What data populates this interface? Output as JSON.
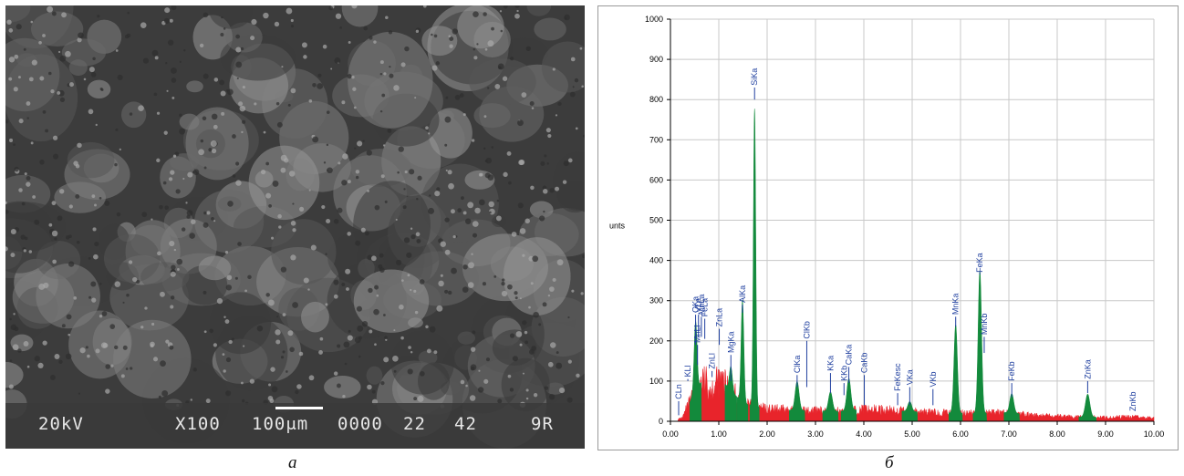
{
  "micrograph": {
    "voltage": "20kV",
    "magnification": "X100",
    "scale_label": "100μm",
    "image_code": "0000",
    "number_a": "22",
    "number_b": "42",
    "corner_code": "9R",
    "texture_colors": [
      "#555555",
      "#6a6a6a",
      "#808080",
      "#959595",
      "#3a3a3a"
    ]
  },
  "captions": {
    "left": "a",
    "right": "б"
  },
  "chart_data": {
    "type": "area",
    "ylabel": "unts",
    "xlim": [
      0,
      10
    ],
    "ylim": [
      0,
      1000
    ],
    "xticks": [
      "0.00",
      "1.00",
      "2.00",
      "3.00",
      "4.00",
      "5.00",
      "6.00",
      "7.00",
      "8.00",
      "9.00",
      "10.00"
    ],
    "yticks": [
      "0",
      "100",
      "200",
      "300",
      "400",
      "500",
      "600",
      "700",
      "800",
      "900",
      "1000"
    ],
    "grid": true,
    "background_color": "#e8242b",
    "peak_color": "#138a3c",
    "label_color": "#1f3f9f",
    "background_points": [
      [
        0.15,
        4
      ],
      [
        0.25,
        10
      ],
      [
        0.35,
        35
      ],
      [
        0.45,
        60
      ],
      [
        0.55,
        80
      ],
      [
        0.65,
        100
      ],
      [
        0.75,
        95
      ],
      [
        0.85,
        80
      ],
      [
        0.95,
        95
      ],
      [
        1.05,
        100
      ],
      [
        1.15,
        90
      ],
      [
        1.3,
        70
      ],
      [
        1.5,
        45
      ],
      [
        1.8,
        35
      ],
      [
        2.0,
        30
      ],
      [
        2.5,
        28
      ],
      [
        3.0,
        26
      ],
      [
        3.5,
        25
      ],
      [
        4.0,
        30
      ],
      [
        4.5,
        28
      ],
      [
        5.0,
        24
      ],
      [
        5.5,
        22
      ],
      [
        6.0,
        20
      ],
      [
        6.5,
        20
      ],
      [
        7.0,
        22
      ],
      [
        7.5,
        15
      ],
      [
        8.0,
        13
      ],
      [
        8.5,
        11
      ],
      [
        9.0,
        10
      ],
      [
        9.5,
        12
      ],
      [
        10.0,
        8
      ]
    ],
    "peaks": [
      {
        "label": "MgKa",
        "x": 1.25,
        "height": 60,
        "width": 0.03
      },
      {
        "label": "AlKa",
        "x": 1.49,
        "height": 255,
        "width": 0.028
      },
      {
        "label": "SiKa",
        "x": 1.74,
        "height": 740,
        "width": 0.024
      },
      {
        "label": "ClKa",
        "x": 2.62,
        "height": 72,
        "width": 0.04
      },
      {
        "label": "KKa",
        "x": 3.31,
        "height": 48,
        "width": 0.04
      },
      {
        "label": "CaKa",
        "x": 3.69,
        "height": 80,
        "width": 0.04
      },
      {
        "label": "VKa",
        "x": 4.95,
        "height": 25,
        "width": 0.04
      },
      {
        "label": "MnKa",
        "x": 5.9,
        "height": 220,
        "width": 0.035
      },
      {
        "label": "FeKa",
        "x": 6.4,
        "height": 355,
        "width": 0.035
      },
      {
        "label": "FeKb",
        "x": 7.06,
        "height": 48,
        "width": 0.04
      },
      {
        "label": "ZnKa",
        "x": 8.63,
        "height": 57,
        "width": 0.045
      },
      {
        "label": "OKa",
        "x": 0.52,
        "height": 175,
        "width": 0.03
      }
    ],
    "annotations": [
      {
        "label": "CLn",
        "x": 0.17,
        "top": 85,
        "line_bottom": 15
      },
      {
        "label": "KLl",
        "x": 0.36,
        "top": 140,
        "line_bottom": 100
      },
      {
        "label": "OKa",
        "x": 0.52,
        "top": 300,
        "line_bottom": 190
      },
      {
        "label": "VLa",
        "x": 0.58,
        "top": 300,
        "line_bottom": 210
      },
      {
        "label": "MnLl",
        "x": 0.56,
        "top": 225,
        "line_bottom": 140
      },
      {
        "label": "MnLa",
        "x": 0.64,
        "top": 295,
        "line_bottom": 210
      },
      {
        "label": "ZnLl",
        "x": 0.86,
        "top": 160,
        "line_bottom": 110
      },
      {
        "label": "FeLa",
        "x": 0.71,
        "top": 290,
        "line_bottom": 205
      },
      {
        "label": "ZnLa",
        "x": 1.01,
        "top": 265,
        "line_bottom": 190
      },
      {
        "label": "MgKa",
        "x": 1.25,
        "top": 200,
        "line_bottom": 100
      },
      {
        "label": "AlKa",
        "x": 1.49,
        "top": 325,
        "line_bottom": 270
      },
      {
        "label": "SiKa",
        "x": 1.74,
        "top": 865,
        "line_bottom": 800
      },
      {
        "label": "ClKb",
        "x": 2.82,
        "top": 235,
        "line_bottom": 85
      },
      {
        "label": "ClKa",
        "x": 2.62,
        "top": 150,
        "line_bottom": 85
      },
      {
        "label": "KKa",
        "x": 3.31,
        "top": 155,
        "line_bottom": 70
      },
      {
        "label": "KKb",
        "x": 3.59,
        "top": 130,
        "line_bottom": 65
      },
      {
        "label": "CaKa",
        "x": 3.69,
        "top": 170,
        "line_bottom": 95
      },
      {
        "label": "CaKb",
        "x": 4.01,
        "top": 150,
        "line_bottom": 40
      },
      {
        "label": "FeKesc",
        "x": 4.7,
        "top": 105,
        "line_bottom": 40
      },
      {
        "label": "VKa",
        "x": 4.95,
        "top": 120,
        "line_bottom": 40
      },
      {
        "label": "VKb",
        "x": 5.43,
        "top": 115,
        "line_bottom": 40
      },
      {
        "label": "MnKa",
        "x": 5.9,
        "top": 295,
        "line_bottom": 235
      },
      {
        "label": "FeKa",
        "x": 6.4,
        "top": 400,
        "line_bottom": 370
      },
      {
        "label": "MnKb",
        "x": 6.49,
        "top": 245,
        "line_bottom": 170
      },
      {
        "label": "FeKb",
        "x": 7.06,
        "top": 130,
        "line_bottom": 60
      },
      {
        "label": "ZnKa",
        "x": 8.63,
        "top": 135,
        "line_bottom": 70
      },
      {
        "label": "ZnKb",
        "x": 9.57,
        "top": 55,
        "line_bottom": 20
      }
    ]
  }
}
